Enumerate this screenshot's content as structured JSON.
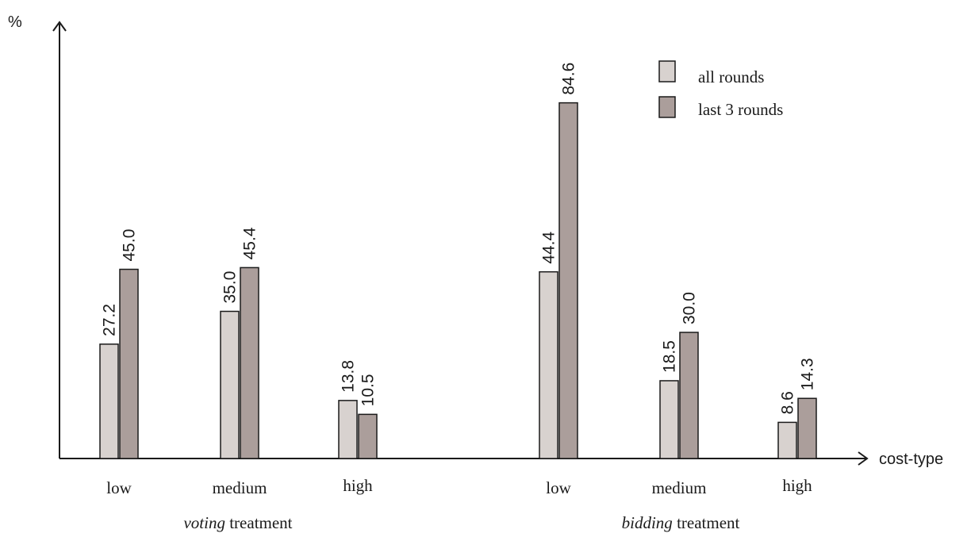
{
  "chart_data": {
    "type": "bar",
    "ylabel": "%",
    "xlabel": "cost-type",
    "ylim": [
      0,
      100
    ],
    "groups": [
      {
        "name_em": "voting",
        "name_rest": " treatment",
        "categories": [
          "low",
          "medium",
          "high"
        ]
      },
      {
        "name_em": "bidding",
        "name_rest": " treatment",
        "categories": [
          "low",
          "medium",
          "high"
        ]
      }
    ],
    "series": [
      {
        "name": "all rounds",
        "color": "#d8d2cf",
        "values": [
          27.2,
          35.0,
          13.8,
          44.4,
          18.5,
          8.6
        ],
        "labels": [
          "27.2",
          "35.0",
          "13.8",
          "44.4",
          "18.5",
          "8.6"
        ]
      },
      {
        "name": "last 3 rounds",
        "color": "#ab9e9b",
        "values": [
          45.0,
          45.4,
          10.5,
          84.6,
          30.0,
          14.3
        ],
        "labels": [
          "45.0",
          "45.4",
          "10.5",
          "84.6",
          "30.0",
          "14.3"
        ]
      }
    ],
    "legend_position": "top-right",
    "grid": false
  }
}
